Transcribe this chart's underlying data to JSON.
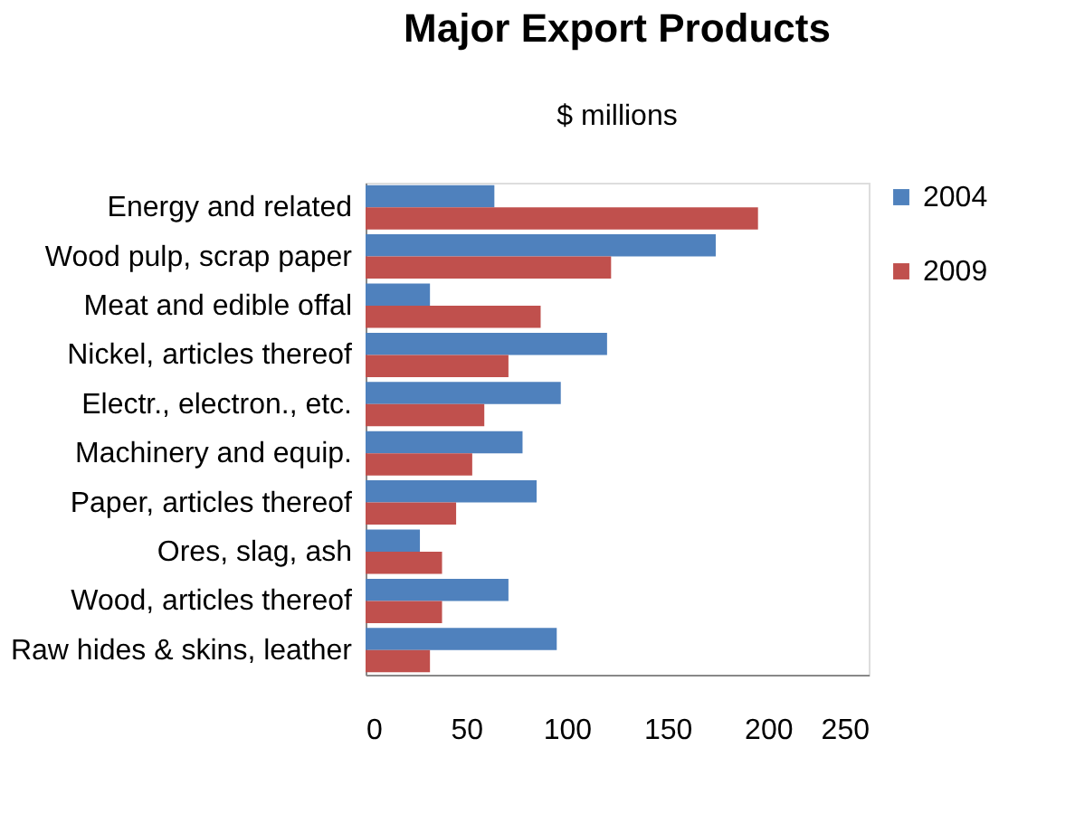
{
  "chart_data": {
    "type": "bar",
    "orientation": "horizontal",
    "title": "Major Export Products",
    "subtitle": "$ millions",
    "categories": [
      "Energy and related",
      "Wood pulp, scrap paper",
      "Meat and edible offal",
      "Nickel, articles thereof",
      "Electr., electron., etc.",
      "Machinery and equip.",
      "Paper, articles thereof",
      "Ores, slag, ash",
      "Wood, articles thereof",
      "Raw hides & skins, leather"
    ],
    "series": [
      {
        "name": "2004",
        "color": "#4f81bd",
        "values": [
          64,
          174,
          32,
          120,
          97,
          78,
          85,
          27,
          71,
          95
        ]
      },
      {
        "name": "2009",
        "color": "#c0504d",
        "values": [
          195,
          122,
          87,
          71,
          59,
          53,
          45,
          38,
          38,
          32
        ]
      }
    ],
    "xlim": [
      0,
      250
    ],
    "xticks": [
      0,
      50,
      100,
      150,
      200,
      250
    ],
    "grid": false,
    "legend": "right"
  }
}
